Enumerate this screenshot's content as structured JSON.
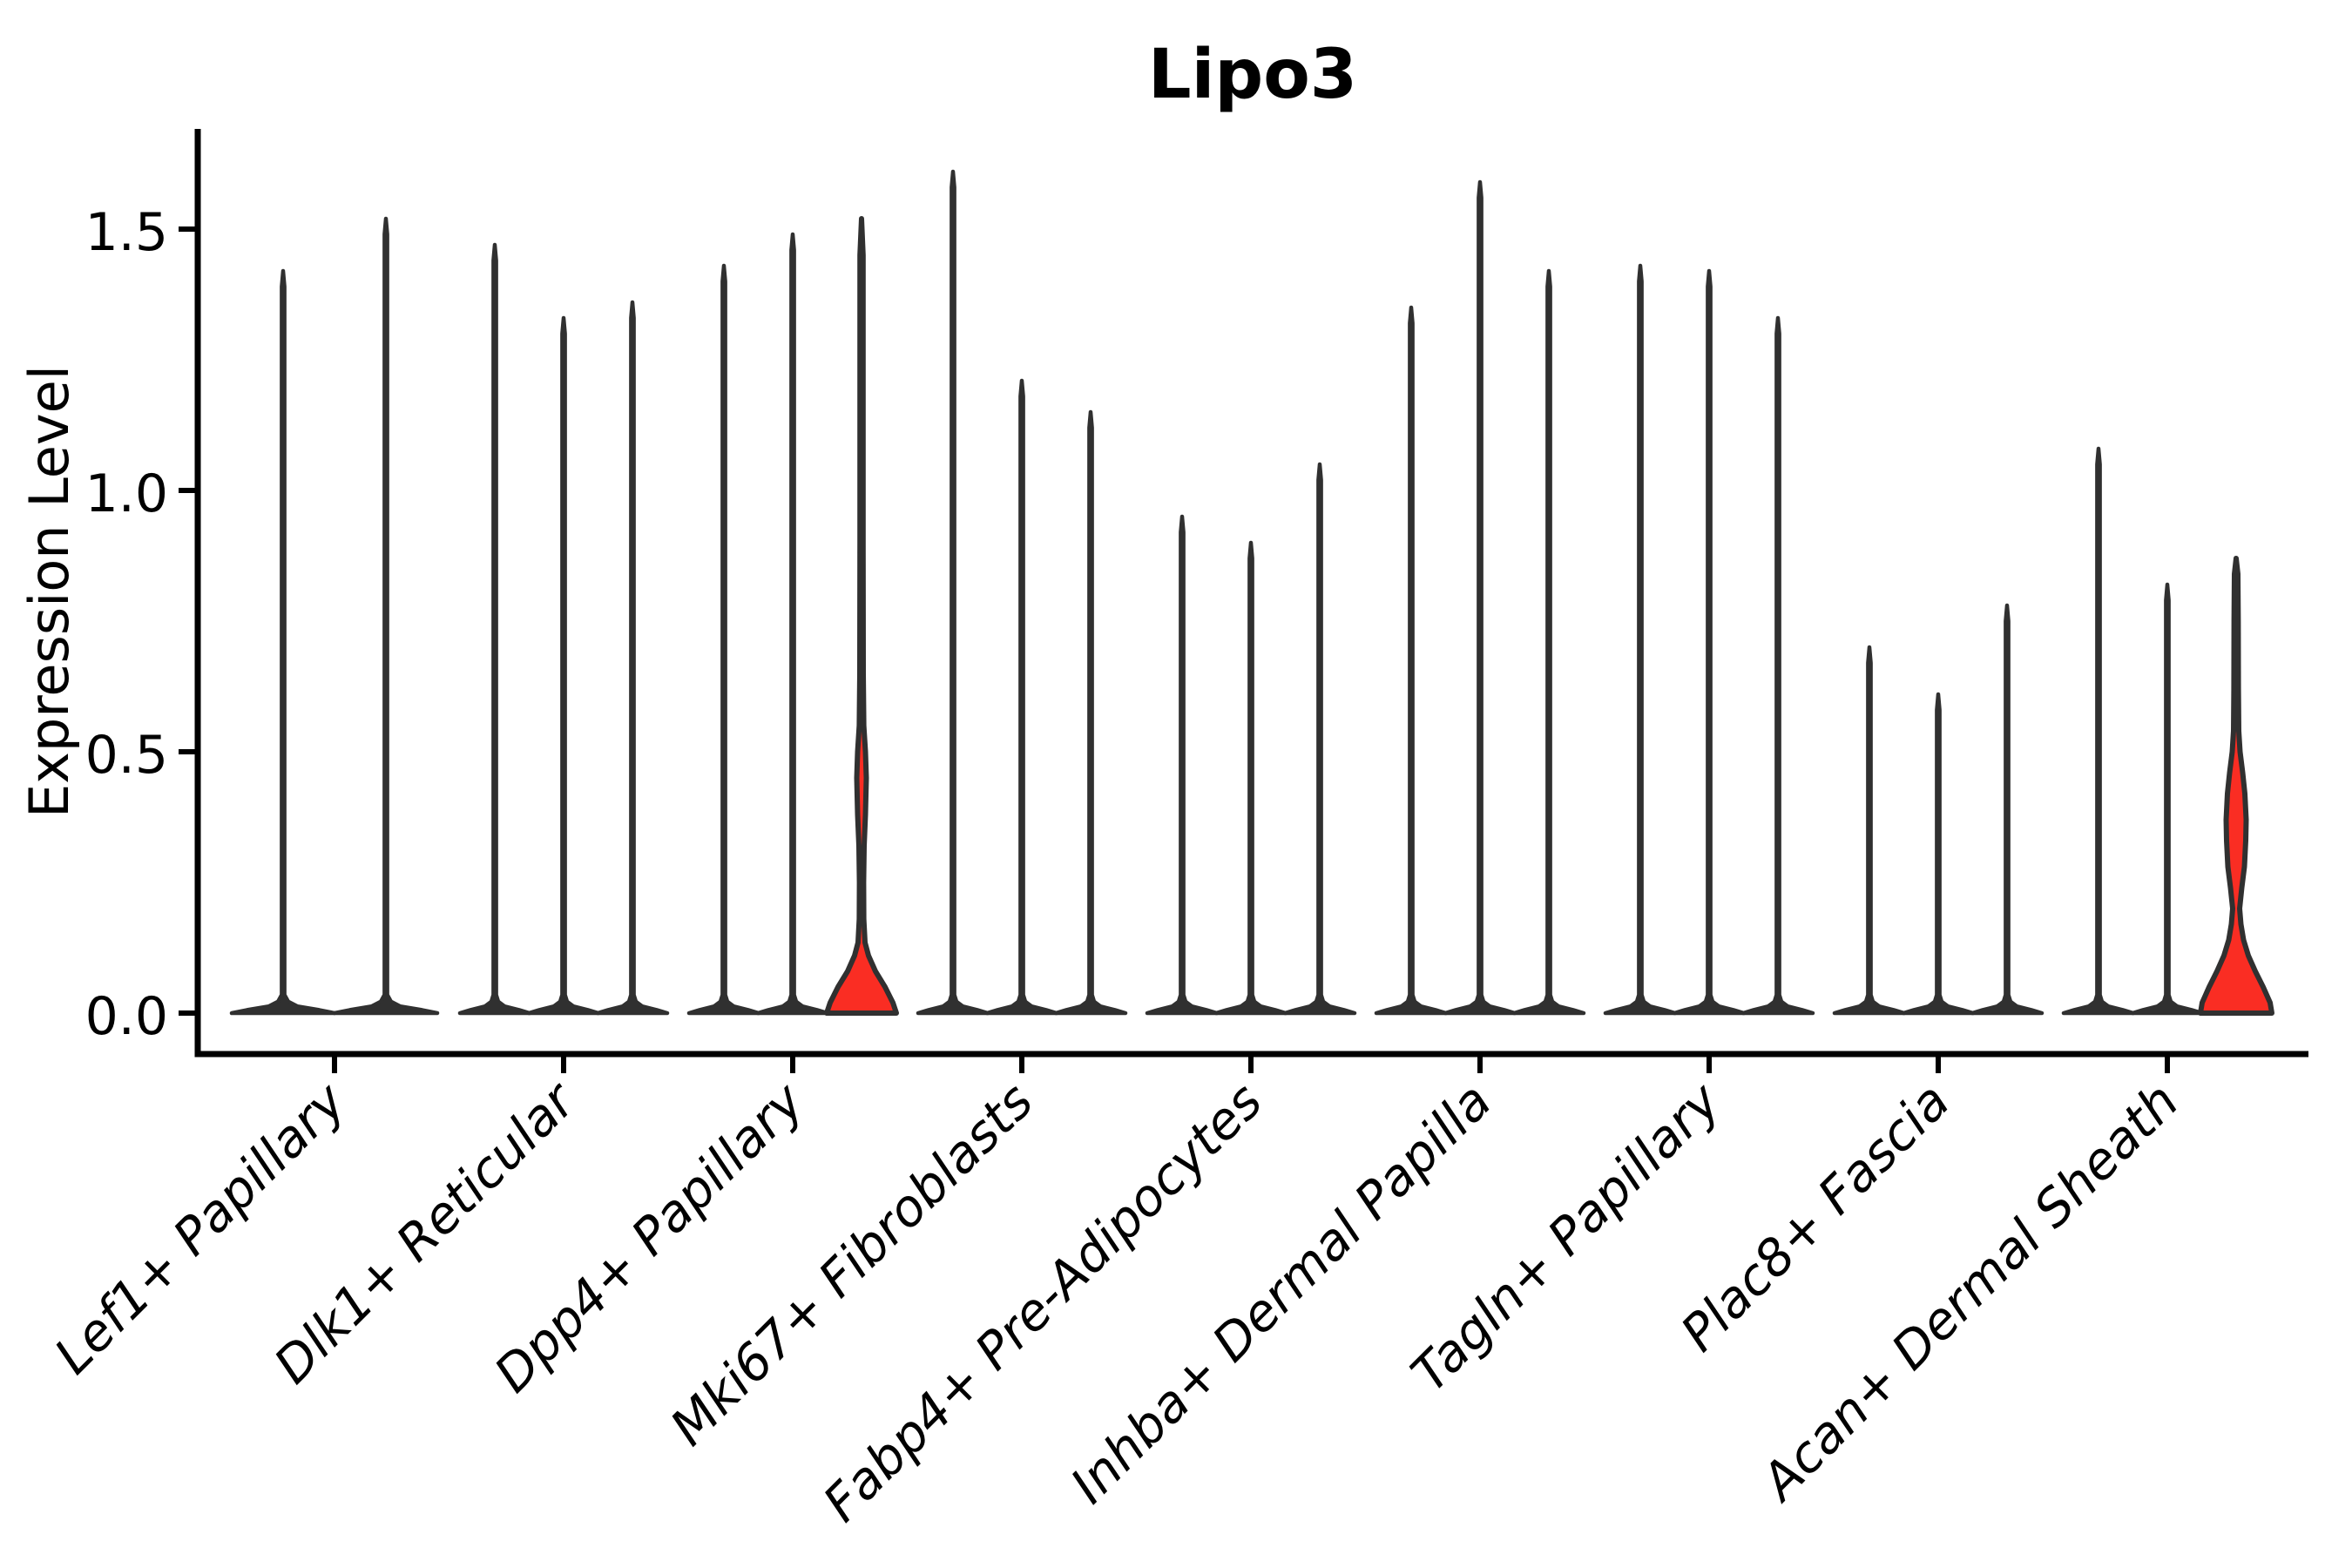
{
  "chart_data": {
    "type": "violin",
    "title": "Lipo3",
    "ylabel": "Expression Level",
    "grid": false,
    "legend": "none",
    "ylim": [
      -0.07,
      1.69
    ],
    "yticks": [
      {
        "value": 0.0,
        "label": "0.0"
      },
      {
        "value": 0.5,
        "label": "0.5"
      },
      {
        "value": 1.0,
        "label": "1.0"
      },
      {
        "value": 1.5,
        "label": "1.5"
      }
    ],
    "colors": {
      "stroke": "#303030",
      "highlight_fill": "#fa2d23",
      "background": "#ffffff"
    },
    "categories": [
      "Lef1+ Papillary",
      "Dlk1+ Reticular",
      "Dpp4+ Papillary",
      "Mki67+ Fibroblasts",
      "Fabp4+ Pre-Adipocytes",
      "Inhba+ Dermal Papilla",
      "Tagln+ Papillary",
      "Plac8+ Fascia",
      "Acan+ Dermal Sheath"
    ],
    "groups": [
      {
        "category": "Lef1+ Papillary",
        "violins": [
          {
            "max": 1.42
          },
          {
            "max": 1.52
          }
        ]
      },
      {
        "category": "Dlk1+ Reticular",
        "violins": [
          {
            "max": 1.47
          },
          {
            "max": 1.33
          },
          {
            "max": 1.36
          }
        ]
      },
      {
        "category": "Dpp4+ Papillary",
        "violins": [
          {
            "max": 1.43
          },
          {
            "max": 1.49
          },
          {
            "max": 1.52,
            "filled": true,
            "profile": [
              [
                0,
                40
              ],
              [
                0.02,
                36
              ],
              [
                0.05,
                27
              ],
              [
                0.08,
                16
              ],
              [
                0.11,
                8
              ],
              [
                0.135,
                4
              ],
              [
                0.18,
                2.6
              ],
              [
                0.25,
                2.4
              ],
              [
                0.32,
                3.0
              ],
              [
                0.38,
                4.5
              ],
              [
                0.45,
                5.5
              ],
              [
                0.5,
                4.5
              ],
              [
                0.55,
                2.6
              ],
              [
                0.65,
                2.0
              ],
              [
                0.9,
                1.8
              ],
              [
                1.2,
                1.8
              ],
              [
                1.45,
                1.8
              ],
              [
                1.52,
                0
              ]
            ]
          }
        ]
      },
      {
        "category": "Mki67+ Fibroblasts",
        "violins": [
          {
            "max": 1.61
          },
          {
            "max": 1.21
          },
          {
            "max": 1.15
          }
        ]
      },
      {
        "category": "Fabp4+ Pre-Adipocytes",
        "violins": [
          {
            "max": 0.95
          },
          {
            "max": 0.9
          },
          {
            "max": 1.05
          }
        ]
      },
      {
        "category": "Inhba+ Dermal Papilla",
        "violins": [
          {
            "max": 1.35
          },
          {
            "max": 1.59
          },
          {
            "max": 1.42
          }
        ]
      },
      {
        "category": "Tagln+ Papillary",
        "violins": [
          {
            "max": 1.43
          },
          {
            "max": 1.42
          },
          {
            "max": 1.33
          }
        ]
      },
      {
        "category": "Plac8+ Fascia",
        "violins": [
          {
            "max": 0.7
          },
          {
            "max": 0.61
          },
          {
            "max": 0.78
          }
        ]
      },
      {
        "category": "Acan+ Dermal Sheath",
        "violins": [
          {
            "max": 1.08
          },
          {
            "max": 0.82
          },
          {
            "max": 0.87,
            "filled": true,
            "profile": [
              [
                0,
                41
              ],
              [
                0.02,
                39
              ],
              [
                0.05,
                31
              ],
              [
                0.08,
                22
              ],
              [
                0.11,
                14
              ],
              [
                0.14,
                8.5
              ],
              [
                0.17,
                5.5
              ],
              [
                0.2,
                4.0
              ],
              [
                0.24,
                6.5
              ],
              [
                0.28,
                9.5
              ],
              [
                0.33,
                11.0
              ],
              [
                0.37,
                11.5
              ],
              [
                0.42,
                10.0
              ],
              [
                0.46,
                7.5
              ],
              [
                0.5,
                4.5
              ],
              [
                0.54,
                3.0
              ],
              [
                0.62,
                2.6
              ],
              [
                0.75,
                2.4
              ],
              [
                0.84,
                2.0
              ],
              [
                0.87,
                0
              ]
            ]
          }
        ]
      }
    ]
  }
}
